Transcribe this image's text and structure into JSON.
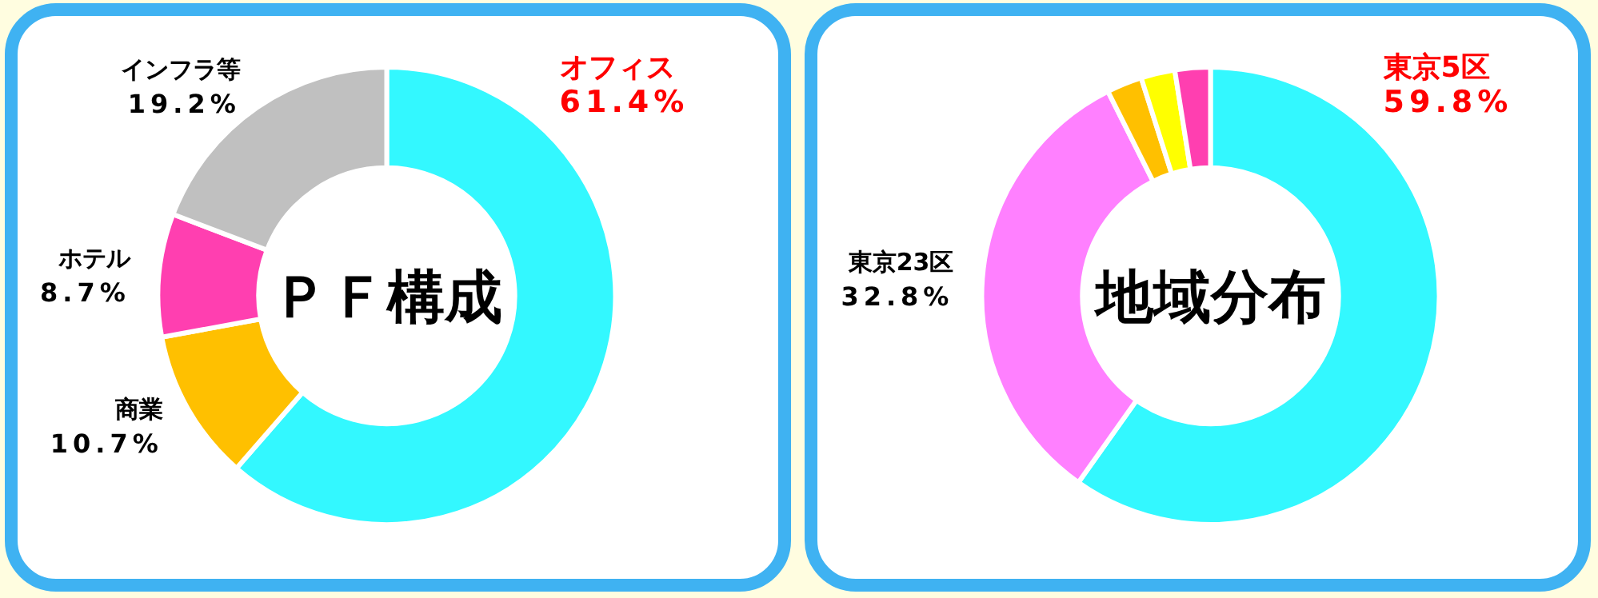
{
  "chart_data": [
    {
      "type": "donut",
      "title": "ＰＦ構成",
      "categories": [
        "オフィス",
        "商業",
        "ホテル",
        "インフラ等"
      ],
      "values": [
        61.4,
        10.7,
        8.7,
        19.2
      ],
      "colors": [
        "#33f8ff",
        "#ffc000",
        "#ff3fb0",
        "#c0c0c0"
      ],
      "value_labels": [
        "61.4%",
        "10.7%",
        "8.7%",
        "19.2%"
      ]
    },
    {
      "type": "donut",
      "title": "地域分布",
      "categories": [
        "東京5区",
        "東京23区",
        null,
        null,
        null
      ],
      "values": [
        59.8,
        32.8,
        2.5,
        2.4,
        2.5
      ],
      "colors": [
        "#33f8ff",
        "#ff80ff",
        "#ffc000",
        "#ffff00",
        "#ff3fb0"
      ],
      "value_labels": [
        "59.8%",
        "32.8%",
        null,
        null,
        null
      ]
    }
  ]
}
